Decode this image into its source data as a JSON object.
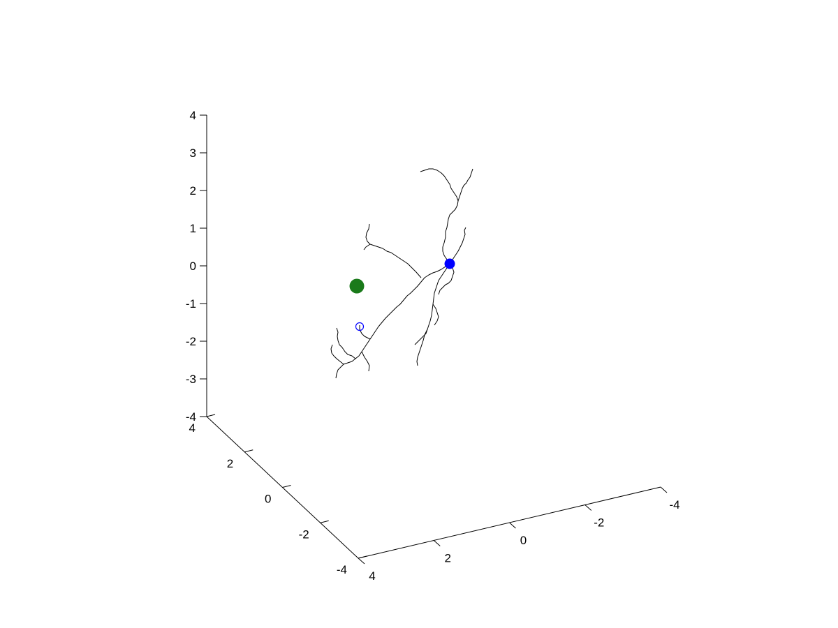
{
  "chart_data": {
    "type": "scatter",
    "projection": "3d",
    "title": "",
    "xlabel": "",
    "ylabel": "",
    "zlabel": "",
    "grid": false,
    "xlim": [
      -4,
      4
    ],
    "ylim": [
      -4,
      4
    ],
    "zlim": [
      -4,
      4
    ],
    "x_ticks": [
      "4",
      "2",
      "0",
      "-2",
      "-4"
    ],
    "y_ticks": [
      "4",
      "2",
      "0",
      "-2",
      "-4"
    ],
    "z_ticks": [
      "-4",
      "-3",
      "-2",
      "-1",
      "0",
      "1",
      "2",
      "3",
      "4"
    ],
    "markers": [
      {
        "name": "",
        "style": "filled-circle",
        "color": "#1a7a1a",
        "size": "large",
        "position_2d": [
          -0.6,
          0.6
        ]
      },
      {
        "name": "",
        "style": "filled-circle",
        "color": "#0000ff",
        "size": "medium",
        "position_2d": [
          2.2,
          2.5
        ]
      },
      {
        "name": "",
        "style": "open-circle",
        "color": "#0000ff",
        "size": "small",
        "position_2d": [
          -0.2,
          -0.6
        ]
      }
    ],
    "tree_color": "#000000"
  }
}
